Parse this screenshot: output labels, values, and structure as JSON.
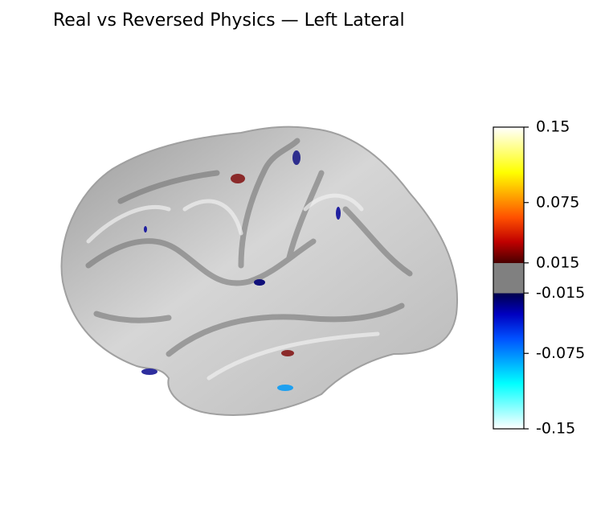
{
  "chart_data": {
    "type": "surface",
    "title": "Real vs Reversed Physics — Left Lateral",
    "colorbar": {
      "ylim": [
        -0.15,
        0.15
      ],
      "yticks": [
        0.15,
        0.075,
        0.015,
        -0.015,
        -0.075,
        -0.15
      ]
    }
  }
}
